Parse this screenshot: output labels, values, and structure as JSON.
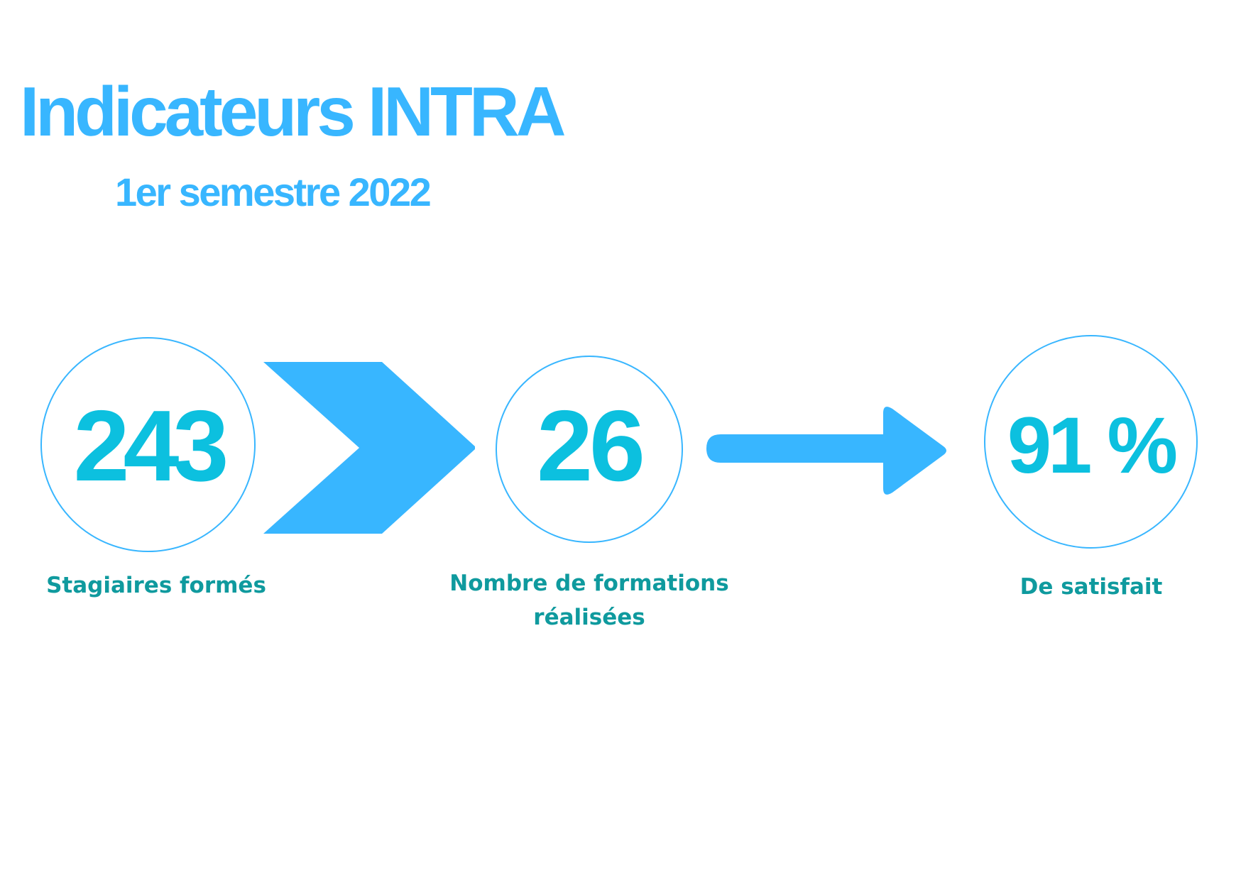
{
  "header": {
    "title": "Indicateurs INTRA",
    "subtitle": "1er semestre 2022"
  },
  "stats": [
    {
      "value": "243",
      "label": "Stagiaires formés"
    },
    {
      "value": "26",
      "label": "Nombre de formations réalisées"
    },
    {
      "value": "91 %",
      "label": "De satisfait"
    }
  ],
  "colors": {
    "accent_blue": "#38b6ff",
    "number_teal": "#0cc0df",
    "label_teal": "#0f9a9e"
  },
  "icons": {
    "connector_1": "chevron-right-icon",
    "connector_2": "arrow-right-icon"
  }
}
